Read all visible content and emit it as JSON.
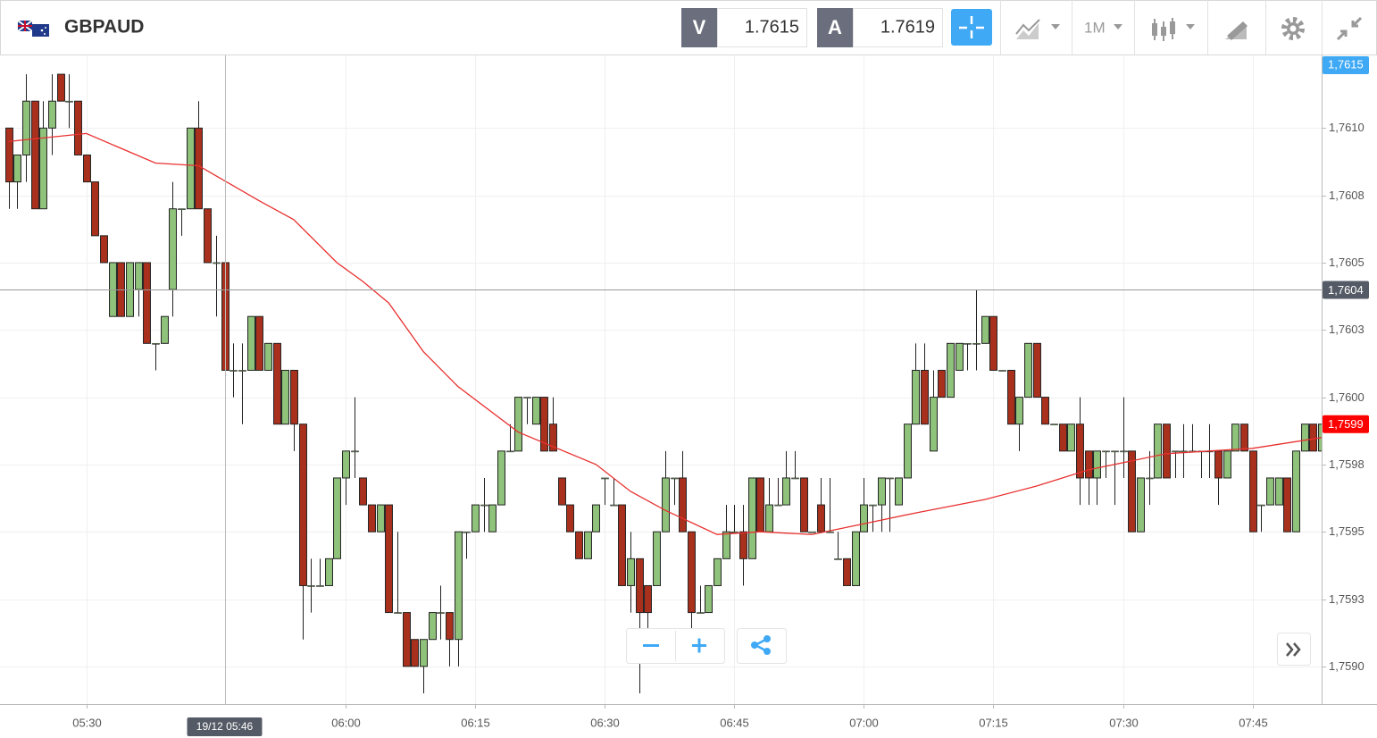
{
  "chart_data": {
    "type": "candlestick",
    "title": "GBPAUD",
    "header": {
      "bid_label": "V",
      "bid": "1.7615",
      "ask_label": "A",
      "ask": "1.7619",
      "timeframe": "1M"
    },
    "bid_axis_label": "1,7615",
    "last_price_label": "1,7599",
    "up_color": "#8fc27a",
    "down_color": "#a9301c",
    "x": [
      "05:21",
      "05:22",
      "05:23",
      "05:24",
      "05:25",
      "05:26",
      "05:27",
      "05:28",
      "05:29",
      "05:30",
      "05:31",
      "05:32",
      "05:33",
      "05:34",
      "05:35",
      "05:36",
      "05:37",
      "05:38",
      "05:39",
      "05:40",
      "05:41",
      "05:42",
      "05:43",
      "05:44",
      "05:45",
      "05:46",
      "05:47",
      "05:48",
      "05:49",
      "05:50",
      "05:51",
      "05:52",
      "05:53",
      "05:54",
      "05:55",
      "05:56",
      "05:57",
      "05:58",
      "05:59",
      "06:00",
      "06:01",
      "06:02",
      "06:03",
      "06:04",
      "06:05",
      "06:06",
      "06:07",
      "06:08",
      "06:09",
      "06:10",
      "06:11",
      "06:12",
      "06:13",
      "06:14",
      "06:15",
      "06:16",
      "06:17",
      "06:18",
      "06:19",
      "06:20",
      "06:21",
      "06:22",
      "06:23",
      "06:24",
      "06:25",
      "06:26",
      "06:27",
      "06:28",
      "06:29",
      "06:30",
      "06:31",
      "06:32",
      "06:33",
      "06:34",
      "06:35",
      "06:36",
      "06:37",
      "06:38",
      "06:39",
      "06:40",
      "06:41",
      "06:42",
      "06:43",
      "06:44",
      "06:45",
      "06:46",
      "06:47",
      "06:48",
      "06:49",
      "06:50",
      "06:51",
      "06:52",
      "06:53",
      "06:54",
      "06:55",
      "06:56",
      "06:57",
      "06:58",
      "06:59",
      "07:00",
      "07:01",
      "07:02",
      "07:03",
      "07:04",
      "07:05",
      "07:06",
      "07:07",
      "07:08",
      "07:09",
      "07:10",
      "07:11",
      "07:12",
      "07:13",
      "07:14",
      "07:15",
      "07:16",
      "07:17",
      "07:18",
      "07:19",
      "07:20",
      "07:21",
      "07:22",
      "07:23",
      "07:24",
      "07:25",
      "07:26",
      "07:27",
      "07:28",
      "07:29",
      "07:30",
      "07:31",
      "07:32",
      "07:33",
      "07:34",
      "07:35",
      "07:36",
      "07:37",
      "07:38",
      "07:39",
      "07:40",
      "07:41",
      "07:42",
      "07:43",
      "07:44",
      "07:45",
      "07:46",
      "07:47",
      "07:48",
      "07:49",
      "07:50",
      "07:51",
      "07:52",
      "07:53"
    ],
    "open": [
      1.761,
      1.7608,
      1.7609,
      1.7611,
      1.7607,
      1.761,
      1.7612,
      1.7611,
      1.7611,
      1.7609,
      1.7608,
      1.7606,
      1.7603,
      1.7605,
      1.7603,
      1.7604,
      1.7605,
      1.7602,
      1.7602,
      1.7604,
      1.7607,
      1.7607,
      1.761,
      1.7607,
      1.7605,
      1.7605,
      1.7601,
      1.7601,
      1.7601,
      1.7603,
      1.7601,
      1.7602,
      1.7599,
      1.7601,
      1.7599,
      1.7593,
      1.7593,
      1.7593,
      1.7594,
      1.7597,
      1.7598,
      1.7597,
      1.7596,
      1.7595,
      1.7596,
      1.7592,
      1.7592,
      1.7591,
      1.759,
      1.7591,
      1.7592,
      1.7592,
      1.7591,
      1.7595,
      1.7595,
      1.7596,
      1.7595,
      1.7596,
      1.7598,
      1.7598,
      1.76,
      1.7599,
      1.76,
      1.7599,
      1.7597,
      1.7596,
      1.7595,
      1.7594,
      1.7595,
      1.7597,
      1.7596,
      1.7596,
      1.7593,
      1.7594,
      1.7593,
      1.7593,
      1.7595,
      1.7597,
      1.7597,
      1.7595,
      1.7592,
      1.7592,
      1.7593,
      1.7594,
      1.7595,
      1.7595,
      1.7594,
      1.7597,
      1.7595,
      1.7596,
      1.7596,
      1.7597,
      1.7597,
      1.7595,
      1.7596,
      1.7595,
      1.7594,
      1.7594,
      1.7593,
      1.7595,
      1.7596,
      1.7596,
      1.7597,
      1.7596,
      1.7597,
      1.7599,
      1.7601,
      1.7598,
      1.7601,
      1.76,
      1.7601,
      1.7602,
      1.7602,
      1.7602,
      1.7603,
      1.7601,
      1.7601,
      1.7599,
      1.76,
      1.7602,
      1.76,
      1.7599,
      1.7599,
      1.7598,
      1.7599,
      1.7598,
      1.7597,
      1.7598,
      1.7598,
      1.7598,
      1.7598,
      1.7595,
      1.7597,
      1.7597,
      1.7599,
      1.7598,
      1.7598,
      1.7598,
      1.7598,
      1.7598,
      1.7598,
      1.7597,
      1.7598,
      1.7599,
      1.7598,
      1.7596,
      1.7596,
      1.7596,
      1.7597,
      1.7595,
      1.7598,
      1.7599,
      1.7598
    ],
    "high": [
      1.761,
      1.7609,
      1.7612,
      1.7611,
      1.7611,
      1.7612,
      1.7612,
      1.7612,
      1.7611,
      1.7609,
      1.7608,
      1.7606,
      1.7605,
      1.7605,
      1.7605,
      1.7605,
      1.7605,
      1.7602,
      1.7603,
      1.7608,
      1.7607,
      1.761,
      1.7611,
      1.7607,
      1.7606,
      1.7605,
      1.7602,
      1.7602,
      1.7603,
      1.7603,
      1.7602,
      1.7602,
      1.7601,
      1.7601,
      1.7599,
      1.7594,
      1.7594,
      1.7594,
      1.7597,
      1.7598,
      1.76,
      1.7597,
      1.7596,
      1.7596,
      1.7596,
      1.7595,
      1.7592,
      1.7591,
      1.7591,
      1.7592,
      1.7593,
      1.7592,
      1.7595,
      1.7595,
      1.7596,
      1.7597,
      1.7596,
      1.7598,
      1.7599,
      1.76,
      1.76,
      1.76,
      1.76,
      1.76,
      1.7597,
      1.7596,
      1.7595,
      1.7595,
      1.7596,
      1.7597,
      1.7597,
      1.7596,
      1.7595,
      1.7594,
      1.7593,
      1.7595,
      1.7598,
      1.7597,
      1.7598,
      1.7595,
      1.7593,
      1.7593,
      1.7594,
      1.7596,
      1.7596,
      1.7596,
      1.7597,
      1.7597,
      1.7597,
      1.7597,
      1.7598,
      1.7598,
      1.7597,
      1.7595,
      1.7597,
      1.7597,
      1.7595,
      1.7594,
      1.7595,
      1.7597,
      1.7596,
      1.7597,
      1.7597,
      1.7597,
      1.7599,
      1.7602,
      1.7602,
      1.7601,
      1.7601,
      1.7602,
      1.7602,
      1.7602,
      1.7604,
      1.7603,
      1.7603,
      1.7601,
      1.7601,
      1.76,
      1.7602,
      1.7602,
      1.76,
      1.7599,
      1.7599,
      1.7599,
      1.76,
      1.7598,
      1.7598,
      1.7598,
      1.7598,
      1.76,
      1.7598,
      1.7597,
      1.7598,
      1.7599,
      1.7599,
      1.7598,
      1.7599,
      1.7599,
      1.7598,
      1.7599,
      1.7598,
      1.7598,
      1.7599,
      1.7599,
      1.7598,
      1.7596,
      1.7597,
      1.7597,
      1.7597,
      1.7598,
      1.7599,
      1.7599,
      1.76
    ],
    "low": [
      1.7607,
      1.7607,
      1.7608,
      1.7607,
      1.7607,
      1.7609,
      1.7611,
      1.761,
      1.7609,
      1.7608,
      1.7606,
      1.7605,
      1.7603,
      1.7603,
      1.7603,
      1.7603,
      1.7602,
      1.7601,
      1.7602,
      1.7603,
      1.7606,
      1.7607,
      1.7607,
      1.7605,
      1.7603,
      1.7601,
      1.76,
      1.7599,
      1.7601,
      1.7601,
      1.7601,
      1.7599,
      1.7599,
      1.7598,
      1.7591,
      1.7592,
      1.7593,
      1.7593,
      1.7594,
      1.7596,
      1.7597,
      1.7596,
      1.7595,
      1.7595,
      1.7592,
      1.7592,
      1.759,
      1.759,
      1.7589,
      1.7591,
      1.7591,
      1.759,
      1.759,
      1.7594,
      1.7595,
      1.7595,
      1.7595,
      1.7596,
      1.7598,
      1.7598,
      1.7599,
      1.7599,
      1.7598,
      1.7598,
      1.7596,
      1.7595,
      1.7594,
      1.7594,
      1.7595,
      1.7596,
      1.7596,
      1.7593,
      1.7592,
      1.7589,
      1.7591,
      1.7593,
      1.7595,
      1.7596,
      1.7595,
      1.7591,
      1.7592,
      1.7592,
      1.7593,
      1.7594,
      1.7595,
      1.7593,
      1.7594,
      1.7595,
      1.7595,
      1.7596,
      1.7596,
      1.7597,
      1.7595,
      1.7595,
      1.7595,
      1.7595,
      1.7594,
      1.7593,
      1.7593,
      1.7595,
      1.7595,
      1.7595,
      1.7595,
      1.7596,
      1.7597,
      1.7599,
      1.7599,
      1.7598,
      1.76,
      1.76,
      1.7601,
      1.7601,
      1.7601,
      1.7602,
      1.7601,
      1.7601,
      1.7599,
      1.7598,
      1.76,
      1.76,
      1.7599,
      1.7599,
      1.7598,
      1.7598,
      1.7596,
      1.7596,
      1.7596,
      1.7597,
      1.7596,
      1.7597,
      1.7595,
      1.7595,
      1.7596,
      1.7597,
      1.7597,
      1.7597,
      1.7597,
      1.7598,
      1.7597,
      1.7597,
      1.7596,
      1.7597,
      1.7598,
      1.7598,
      1.7595,
      1.7595,
      1.7596,
      1.7596,
      1.7595,
      1.7595,
      1.7598,
      1.7598,
      1.7598
    ],
    "close": [
      1.7608,
      1.7609,
      1.7611,
      1.7607,
      1.761,
      1.7611,
      1.7611,
      1.7611,
      1.7609,
      1.7608,
      1.7606,
      1.7605,
      1.7605,
      1.7603,
      1.7605,
      1.7605,
      1.7602,
      1.7602,
      1.7603,
      1.7607,
      1.7607,
      1.761,
      1.7607,
      1.7605,
      1.7605,
      1.7601,
      1.7601,
      1.7601,
      1.7603,
      1.7601,
      1.7602,
      1.7599,
      1.7601,
      1.7599,
      1.7593,
      1.7593,
      1.7593,
      1.7594,
      1.7597,
      1.7598,
      1.7598,
      1.7596,
      1.7595,
      1.7596,
      1.7592,
      1.7592,
      1.759,
      1.759,
      1.7591,
      1.7592,
      1.7592,
      1.7591,
      1.7595,
      1.7595,
      1.7596,
      1.7596,
      1.7596,
      1.7598,
      1.7598,
      1.76,
      1.76,
      1.76,
      1.7598,
      1.7598,
      1.7596,
      1.7595,
      1.7594,
      1.7595,
      1.7596,
      1.7597,
      1.7596,
      1.7593,
      1.7594,
      1.7592,
      1.7592,
      1.7595,
      1.7597,
      1.7597,
      1.7595,
      1.7592,
      1.7592,
      1.7593,
      1.7594,
      1.7595,
      1.7595,
      1.7594,
      1.7597,
      1.7595,
      1.7596,
      1.7596,
      1.7597,
      1.7597,
      1.7595,
      1.7595,
      1.7595,
      1.7595,
      1.7594,
      1.7593,
      1.7595,
      1.7596,
      1.7596,
      1.7597,
      1.7597,
      1.7597,
      1.7599,
      1.7601,
      1.7599,
      1.76,
      1.76,
      1.7602,
      1.7602,
      1.7602,
      1.7602,
      1.7603,
      1.7601,
      1.7601,
      1.7599,
      1.76,
      1.7602,
      1.76,
      1.7599,
      1.7599,
      1.7598,
      1.7599,
      1.7597,
      1.7597,
      1.7598,
      1.7598,
      1.7598,
      1.7598,
      1.7595,
      1.7597,
      1.7597,
      1.7599,
      1.7597,
      1.7598,
      1.7598,
      1.7598,
      1.7598,
      1.7598,
      1.7597,
      1.7598,
      1.7599,
      1.7598,
      1.7595,
      1.7596,
      1.7597,
      1.7597,
      1.7595,
      1.7598,
      1.7599,
      1.7598,
      1.7599
    ],
    "moving_average": {
      "color": "#e8312f",
      "x": [
        "05:21",
        "05:30",
        "05:38",
        "05:43",
        "05:50",
        "05:54",
        "05:59",
        "06:02",
        "06:05",
        "06:09",
        "06:13",
        "06:20",
        "06:29",
        "06:33",
        "06:37",
        "06:43",
        "06:48",
        "06:54",
        "07:00",
        "07:06",
        "07:14",
        "07:20",
        "07:26",
        "07:35",
        "07:45",
        "07:53"
      ],
      "values": [
        1.76095,
        1.76098,
        1.76087,
        1.76086,
        1.76073,
        1.76066,
        1.7605,
        1.76043,
        1.76035,
        1.76017,
        1.76004,
        1.75987,
        1.75975,
        1.75965,
        1.75958,
        1.75949,
        1.7595,
        1.75949,
        1.75953,
        1.75957,
        1.75962,
        1.75967,
        1.75973,
        1.75979,
        1.75981,
        1.75985
      ]
    },
    "crosshair": {
      "x": "05:46",
      "x_label": "19/12 05:46",
      "y": 1.7604,
      "y_label": "1,7604"
    },
    "xlim": [
      "05:20",
      "07:53"
    ],
    "xticks": [
      "05:30",
      "06:00",
      "06:15",
      "06:30",
      "06:45",
      "07:00",
      "07:15",
      "07:30",
      "07:45"
    ],
    "ylim": [
      1.75886,
      1.76127
    ],
    "yticks": [
      {
        "value": 1.759,
        "label": "1,7590"
      },
      {
        "value": 1.75925,
        "label": "1,7593"
      },
      {
        "value": 1.7595,
        "label": "1,7595"
      },
      {
        "value": 1.75975,
        "label": "1,7598"
      },
      {
        "value": 1.76,
        "label": "1,7600"
      },
      {
        "value": 1.76025,
        "label": "1,7603"
      },
      {
        "value": 1.7605,
        "label": "1,7605"
      },
      {
        "value": 1.76075,
        "label": "1,7608"
      },
      {
        "value": 1.761,
        "label": "1,7610"
      }
    ],
    "grid": true
  }
}
